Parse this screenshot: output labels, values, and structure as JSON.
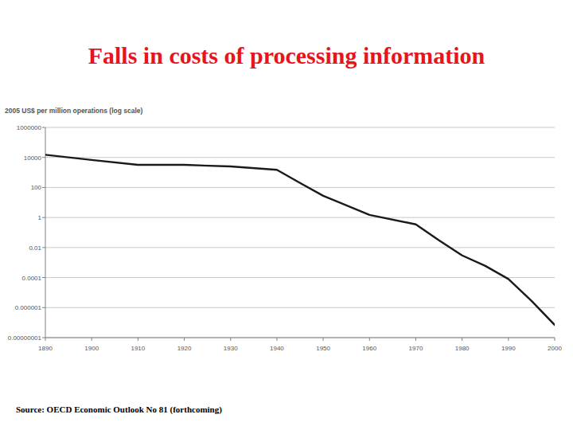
{
  "chart_data": {
    "type": "line",
    "title": "Falls in costs of processing information",
    "y_label": "2005 US$ per million operations (log scale)",
    "source": "Source: OECD Economic Outlook No 81 (forthcoming)",
    "x": [
      1890,
      1900,
      1910,
      1920,
      1930,
      1940,
      1945,
      1950,
      1960,
      1970,
      1975,
      1980,
      1985,
      1990,
      1995,
      2000
    ],
    "values": [
      15000,
      6800,
      3200,
      3200,
      2500,
      1500,
      200,
      28,
      1.5,
      0.35,
      0.03,
      0.003,
      0.0006,
      8e-05,
      2.8e-06,
      7e-08
    ],
    "color": "#1a1a1a",
    "xlim": [
      1890,
      2000
    ],
    "xticks": [
      1890,
      1900,
      1910,
      1920,
      1930,
      1940,
      1950,
      1960,
      1970,
      1980,
      1990,
      2000
    ],
    "ylim": [
      1e-08,
      1000000
    ],
    "yticks": [
      1000000,
      10000,
      100,
      1,
      0.01,
      0.0001,
      1e-06,
      {
        "value": 1e-08,
        "label": "0.00000001"
      }
    ],
    "log": "y",
    "grid": true
  }
}
